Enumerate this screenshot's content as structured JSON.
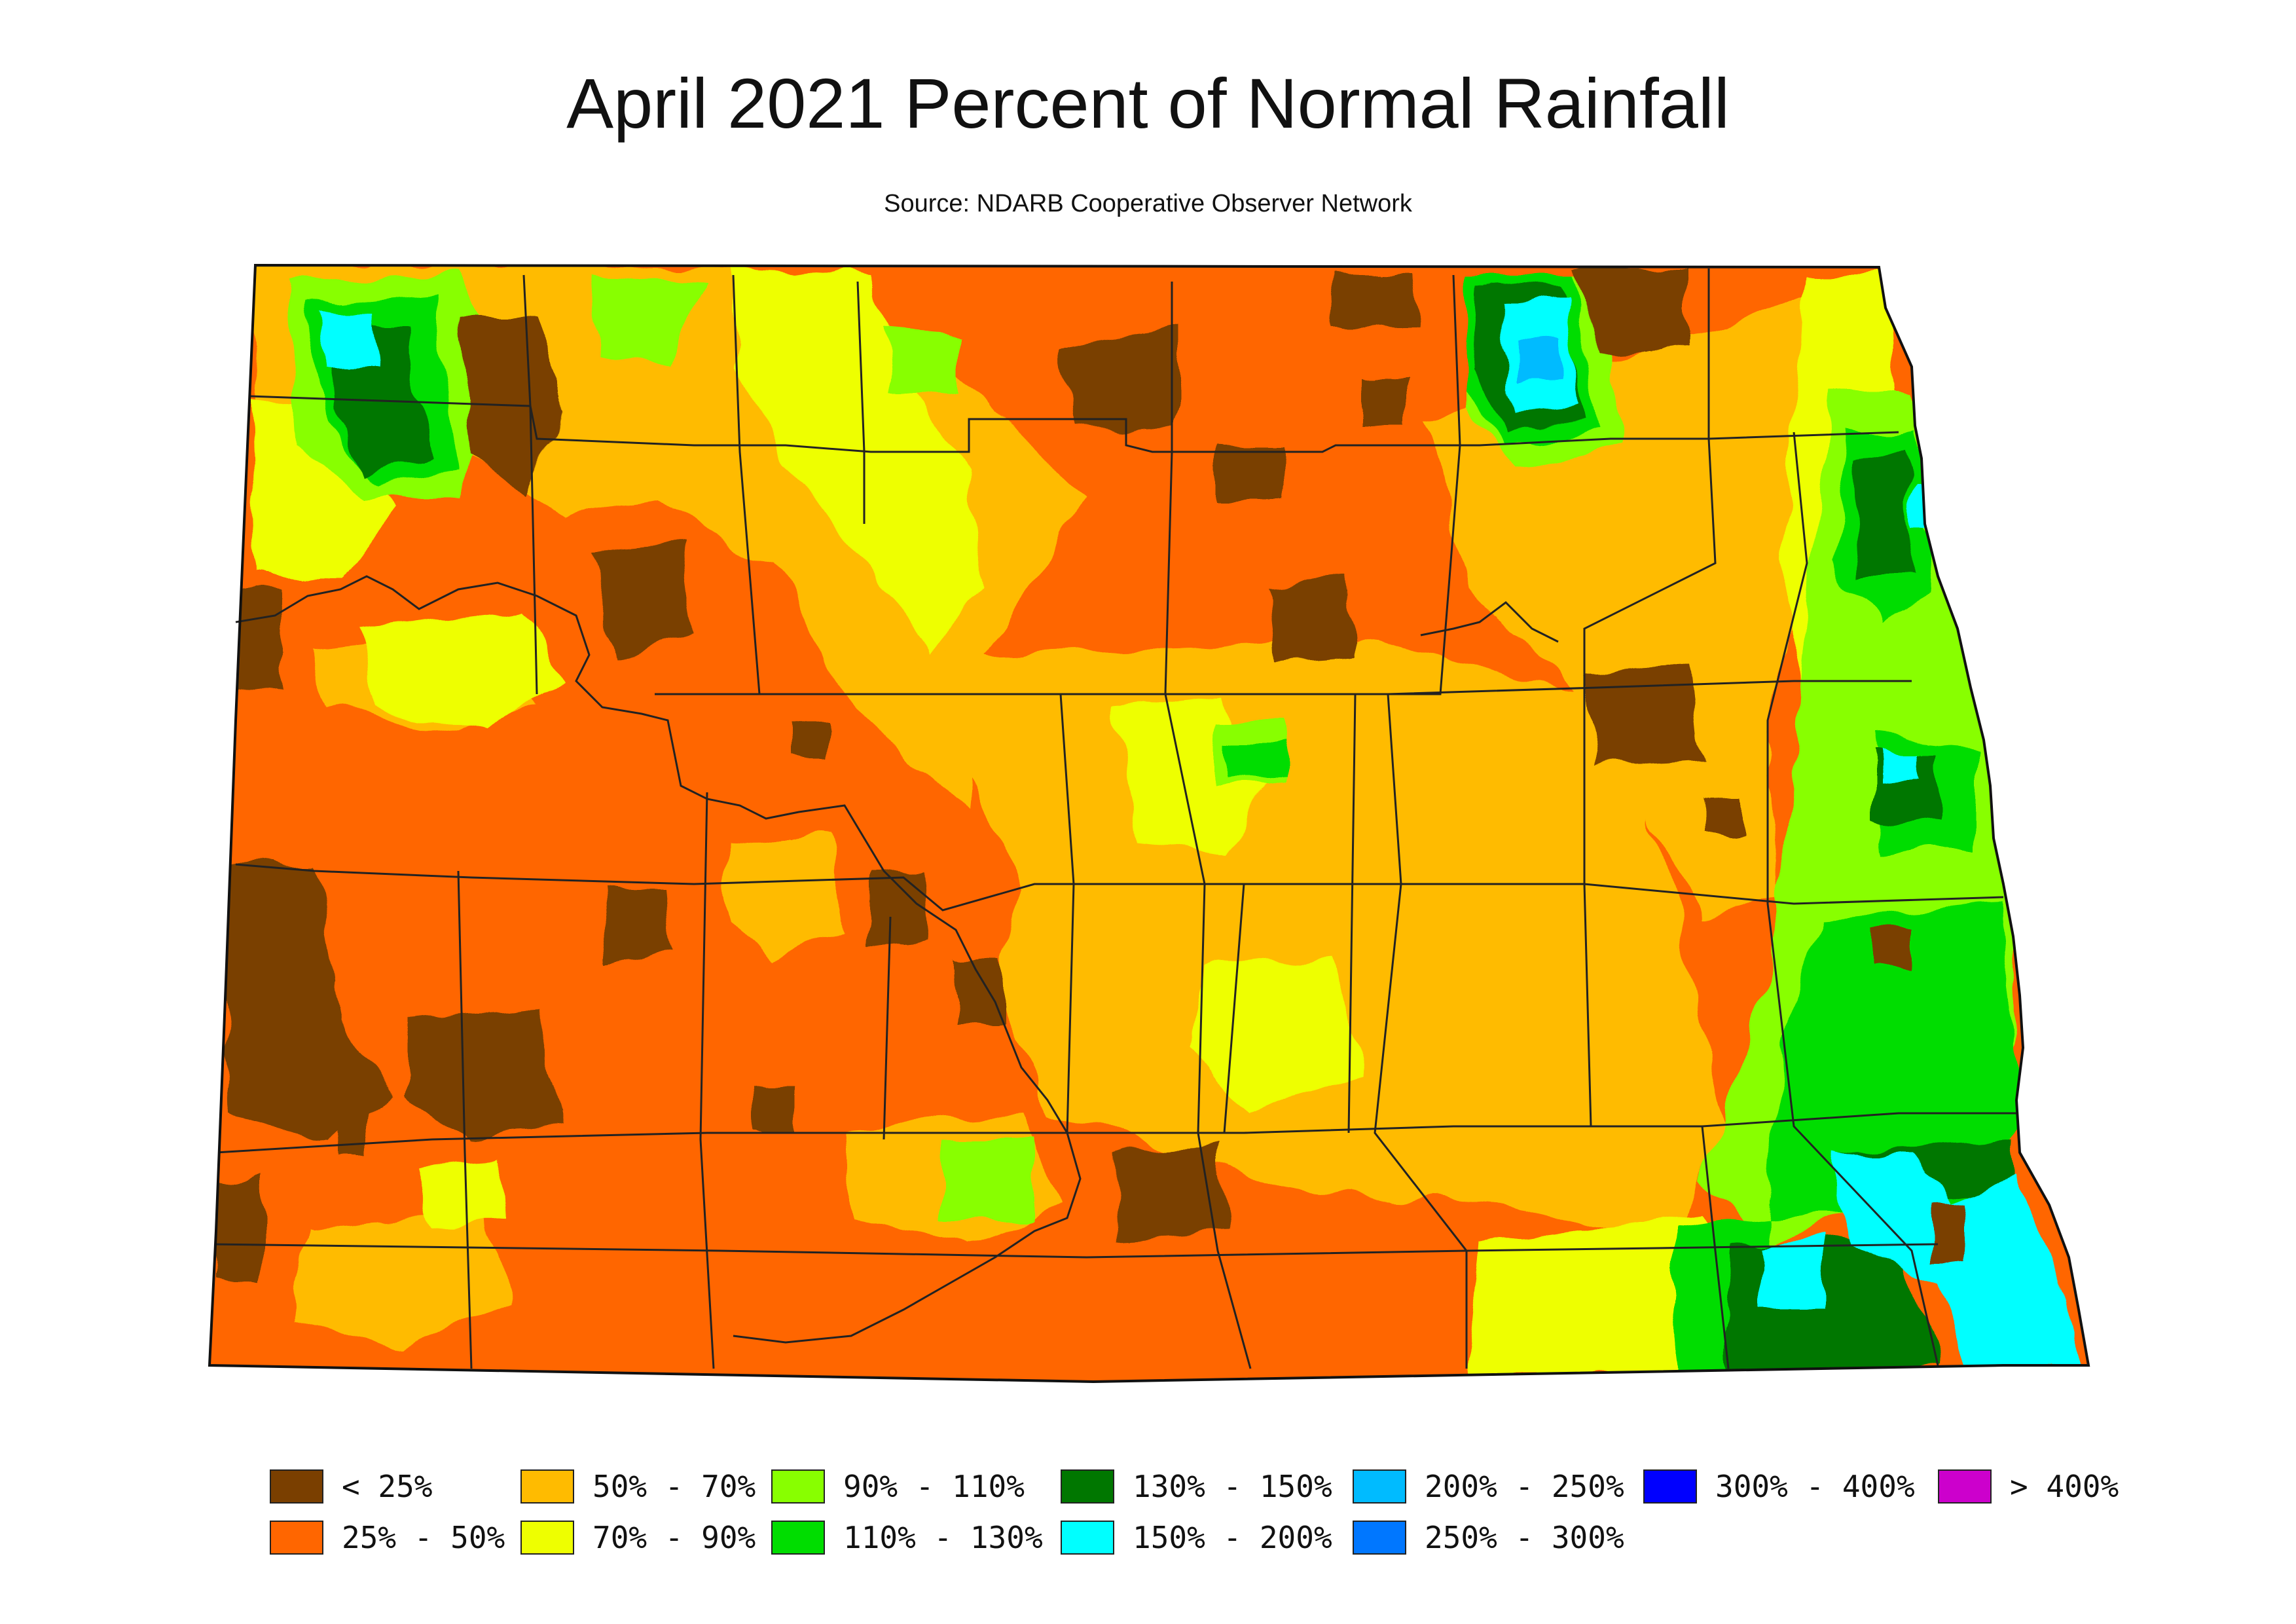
{
  "title": "April 2021 Percent of Normal Rainfall",
  "source": "Source: NDARB Cooperative Observer Network",
  "legend": [
    {
      "label": "< 25%",
      "color": "#7a3f00"
    },
    {
      "label": "25% - 50%",
      "color": "#ff6600"
    },
    {
      "label": "50% - 70%",
      "color": "#ffbb00"
    },
    {
      "label": "70% - 90%",
      "color": "#eeff00"
    },
    {
      "label": "90% - 110%",
      "color": "#88ff00"
    },
    {
      "label": "110% - 130%",
      "color": "#00dd00"
    },
    {
      "label": "130% - 150%",
      "color": "#007700"
    },
    {
      "label": "150% - 200%",
      "color": "#00ffff"
    },
    {
      "label": "200% - 250%",
      "color": "#00bbff"
    },
    {
      "label": "250% - 300%",
      "color": "#0077ff"
    },
    {
      "label": "300% - 400%",
      "color": "#0000ff"
    },
    {
      "label": "> 400%",
      "color": "#cc00cc"
    }
  ]
}
